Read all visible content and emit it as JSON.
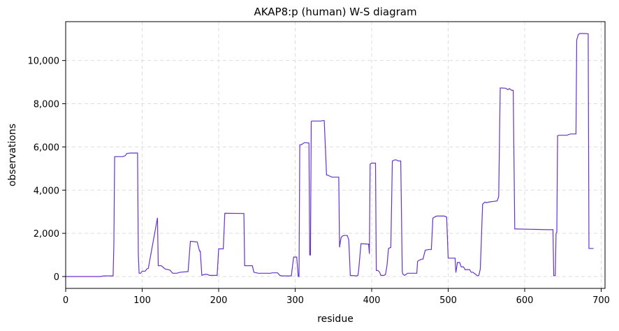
{
  "chart_data": {
    "type": "line",
    "title": "AKAP8:p (human) W-S diagram",
    "xlabel": "residue",
    "ylabel": "observations",
    "xlim": [
      0,
      705
    ],
    "ylim": [
      -550,
      11800
    ],
    "xticks": [
      0,
      100,
      200,
      300,
      400,
      500,
      600,
      700
    ],
    "xtick_labels": [
      "0",
      "100",
      "200",
      "300",
      "400",
      "500",
      "600",
      "700"
    ],
    "yticks": [
      0,
      2000,
      4000,
      6000,
      8000,
      10000
    ],
    "ytick_labels": [
      "0",
      "2,000",
      "4,000",
      "6,000",
      "8,000",
      "10,000"
    ],
    "grid": true,
    "grid_style": "dashed",
    "line_color": "#6633cc",
    "series": [
      {
        "x": [
          0,
          45,
          50,
          62,
          63,
          64,
          75,
          78,
          80,
          85,
          94,
          95,
          96,
          98,
          100,
          104,
          106,
          108,
          120,
          121,
          125,
          130,
          136,
          140,
          145,
          150,
          160,
          163,
          164,
          172,
          175,
          176,
          178,
          180,
          182,
          185,
          188,
          195,
          198,
          200,
          206,
          208,
          233,
          234,
          236,
          244,
          246,
          248,
          252,
          256,
          268,
          270,
          277,
          280,
          283,
          290,
          295,
          298,
          302,
          304,
          305,
          306,
          308,
          310,
          312,
          318,
          319,
          320,
          321,
          322,
          334,
          336,
          338,
          341,
          342,
          348,
          350,
          357,
          358,
          360,
          362,
          364,
          368,
          370,
          372,
          380,
          382,
          383,
          386,
          388,
          396,
          397,
          398,
          400,
          405,
          406,
          408,
          410,
          412,
          416,
          418,
          420,
          422,
          425,
          427,
          430,
          432,
          435,
          438,
          440,
          441,
          443,
          447,
          455,
          459,
          460,
          462,
          465,
          467,
          470,
          475,
          478,
          480,
          482,
          485,
          490,
          495,
          498,
          500,
          508,
          509,
          510,
          512,
          515,
          517,
          520,
          522,
          528,
          530,
          532,
          534,
          536,
          538,
          540,
          542,
          545,
          548,
          550,
          555,
          560,
          564,
          566,
          568,
          570,
          575,
          578,
          580,
          583,
          585,
          587,
          588,
          590,
          630,
          632,
          634,
          637,
          638,
          640,
          641,
          642,
          643,
          645,
          655,
          660,
          667,
          668,
          670,
          672,
          675,
          678,
          683,
          684,
          686,
          688,
          690
        ],
        "y": [
          0,
          0,
          30,
          30,
          1500,
          5550,
          5550,
          5600,
          5700,
          5720,
          5720,
          1000,
          150,
          150,
          250,
          250,
          350,
          380,
          2720,
          500,
          500,
          350,
          300,
          150,
          150,
          200,
          230,
          1630,
          1630,
          1600,
          1180,
          1180,
          50,
          80,
          100,
          100,
          50,
          50,
          50,
          1280,
          1280,
          2930,
          2920,
          500,
          500,
          500,
          200,
          180,
          150,
          150,
          150,
          170,
          170,
          50,
          30,
          30,
          30,
          900,
          900,
          0,
          0,
          6100,
          6100,
          6150,
          6200,
          6180,
          1000,
          1000,
          7180,
          7200,
          7200,
          7220,
          7220,
          4700,
          4700,
          4600,
          4600,
          4600,
          1350,
          1800,
          1880,
          1900,
          1900,
          1700,
          50,
          30,
          50,
          300,
          1520,
          1520,
          1500,
          1050,
          5200,
          5250,
          5250,
          280,
          280,
          220,
          50,
          50,
          90,
          500,
          1300,
          1350,
          5350,
          5400,
          5400,
          5350,
          5350,
          200,
          100,
          50,
          150,
          150,
          150,
          700,
          750,
          800,
          800,
          1220,
          1250,
          1250,
          2700,
          2750,
          2800,
          2800,
          2800,
          2750,
          850,
          850,
          850,
          180,
          650,
          650,
          450,
          450,
          320,
          320,
          200,
          200,
          150,
          100,
          40,
          40,
          350,
          3350,
          3450,
          3420,
          3460,
          3480,
          3500,
          3700,
          8730,
          8730,
          8720,
          8650,
          8700,
          8620,
          8620,
          2200,
          2200,
          2200,
          2170,
          2170,
          2170,
          2170,
          40,
          40,
          2000,
          2050,
          6520,
          6540,
          6540,
          6600,
          6600,
          10950,
          11200,
          11250,
          11250,
          11250,
          11240,
          1300,
          1300,
          1300,
          1300
        ]
      }
    ]
  }
}
